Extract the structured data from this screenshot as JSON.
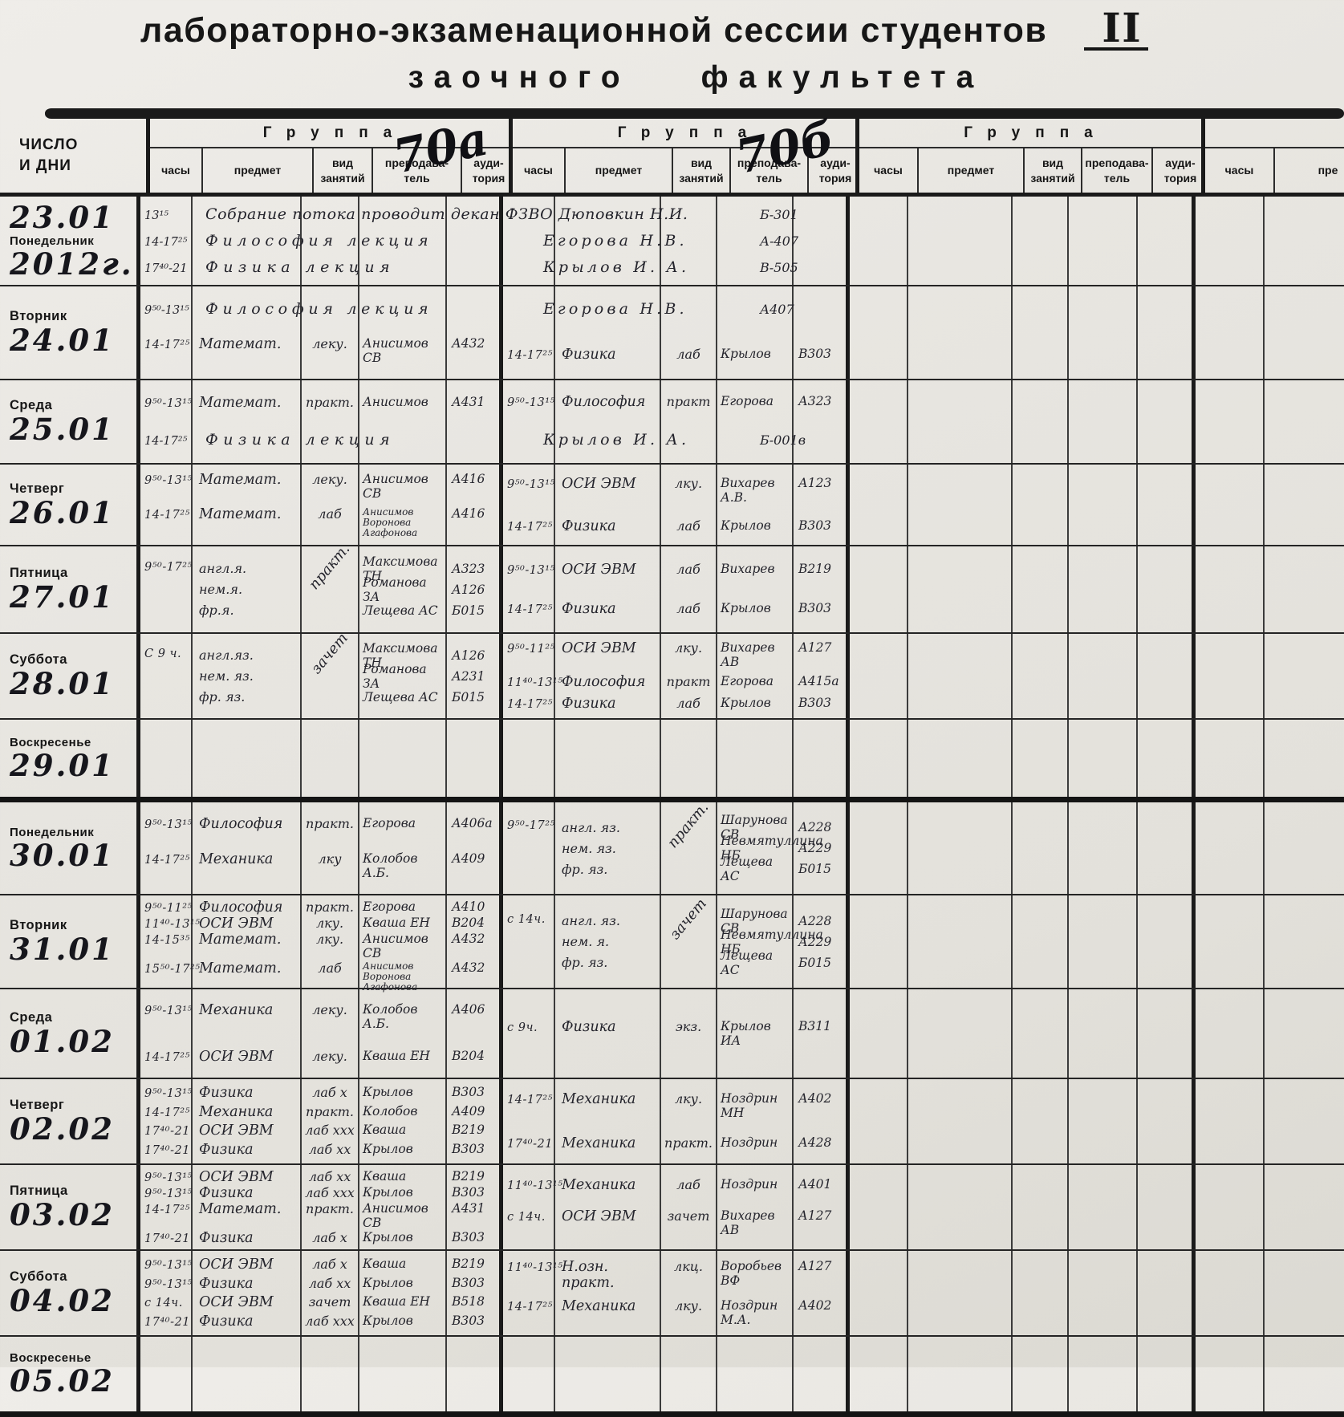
{
  "title": {
    "line1": "лабораторно-экзаменационной сессии студентов",
    "numeral": "II",
    "line2": "заочного факультета"
  },
  "header": {
    "date_col": "ЧИСЛО\nИ ДНИ",
    "group_label": "Группа",
    "group_numbers": [
      "70а",
      "70б",
      "",
      ""
    ],
    "columns": [
      "часы",
      "предмет",
      "вид\nзанятий",
      "преподава-\nтель",
      "ауди-\nтория"
    ],
    "partial_columns": [
      "часы",
      "пре"
    ]
  },
  "rows": [
    {
      "date_lines": [
        {
          "t": "23.01",
          "s": "big"
        },
        {
          "t": "Понедельник",
          "s": "print"
        },
        {
          "t": "2012г.",
          "s": "big"
        }
      ],
      "a": [
        {
          "span": true,
          "time": "13¹⁵",
          "text": "Собрание потока проводит декан ФЗВО Дюповкин Н.И.",
          "room": "Б-301",
          "ls": "0.03em"
        },
        {
          "span": true,
          "time": "14-17²⁵",
          "text": "Философия лекция",
          "teacher": "Егорова Н.В.",
          "room": "А-407",
          "ls": "0.3em"
        },
        {
          "span": true,
          "time": "17⁴⁰-21",
          "text": "Физика лекция",
          "teacher": "Крылов И. А.",
          "room": "В-505",
          "ls": "0.34em"
        }
      ],
      "b": []
    },
    {
      "date_lines": [
        {
          "t": "Вторник",
          "s": "print"
        },
        {
          "t": "24.01",
          "s": "big"
        }
      ],
      "a": [
        {
          "span": true,
          "time": "9⁵⁰-13¹⁵",
          "text": "Философия лекция",
          "teacher": "Егорова Н.В.",
          "room": "А407",
          "ls": "0.3em"
        },
        {
          "time": "14-17²⁵",
          "subject": "Математ.",
          "type": "леку.",
          "teacher": "Анисимов СВ",
          "room": "А432"
        }
      ],
      "b": [
        {
          "spacer": true
        },
        {
          "time": "14-17²⁵",
          "subject": "Физика",
          "type": "лаб",
          "teacher": "Крылов",
          "room": "В303"
        }
      ]
    },
    {
      "date_lines": [
        {
          "t": "Среда",
          "s": "print"
        },
        {
          "t": "25.01",
          "s": "big"
        }
      ],
      "a": [
        {
          "time": "9⁵⁰-13¹⁵",
          "subject": "Математ.",
          "type": "практ.",
          "teacher": "Анисимов",
          "room": "А431"
        },
        {
          "span": true,
          "time": "14-17²⁵",
          "text": "Физика лекция",
          "teacher": "Крылов И. А.",
          "room": "Б-001в",
          "ls": "0.34em"
        }
      ],
      "b": [
        {
          "time": "9⁵⁰-13¹⁵",
          "subject": "Философия",
          "type": "практ",
          "teacher": "Егорова",
          "room": "А323"
        },
        {
          "spacer": true
        }
      ]
    },
    {
      "date_lines": [
        {
          "t": "Четверг",
          "s": "print"
        },
        {
          "t": "26.01",
          "s": "big"
        }
      ],
      "a": [
        {
          "time": "9⁵⁰-13¹⁵",
          "subject": "Математ.",
          "type": "леку.",
          "teacher": "Анисимов СВ",
          "room": "А416"
        },
        {
          "time": "14-17²⁵",
          "subject": "Математ.",
          "type": "лаб",
          "teachers": [
            "Анисимов",
            "Воронова",
            "Агафонова"
          ],
          "room": "А416"
        }
      ],
      "b": [
        {
          "time": "9⁵⁰-13¹⁵",
          "subject": "ОСИ ЭВМ",
          "type": "лку.",
          "teacher": "Вихарев А.В.",
          "room": "А123"
        },
        {
          "time": "14-17²⁵",
          "subject": "Физика",
          "type": "лаб",
          "teacher": "Крылов",
          "room": "В303"
        }
      ]
    },
    {
      "date_lines": [
        {
          "t": "Пятница",
          "s": "print"
        },
        {
          "t": "27.01",
          "s": "big"
        }
      ],
      "a": [
        {
          "time": "9⁵⁰-17²⁵",
          "subjects": [
            "англ.я.",
            "нем.я.",
            "фр.я."
          ],
          "type": "практ.",
          "diag": true,
          "teachers": [
            "Максимова ТН",
            "Романова ЗА",
            "Лещева АС"
          ],
          "rooms": [
            "А323",
            "А126",
            "Б015"
          ]
        }
      ],
      "b": [
        {
          "time": "9⁵⁰-13¹⁵",
          "subject": "ОСИ ЭВМ",
          "type": "лаб",
          "teacher": "Вихарев",
          "room": "В219"
        },
        {
          "time": "14-17²⁵",
          "subject": "Физика",
          "type": "лаб",
          "teacher": "Крылов",
          "room": "В303"
        }
      ]
    },
    {
      "date_lines": [
        {
          "t": "Суббота",
          "s": "print"
        },
        {
          "t": "28.01",
          "s": "big"
        }
      ],
      "a": [
        {
          "time": "С 9 ч.",
          "subjects": [
            "англ.яз.",
            "нем. яз.",
            "фр. яз."
          ],
          "type": "зачет",
          "diag": true,
          "teachers": [
            "Максимова ТН",
            "Романова ЗА",
            "Лещева АС"
          ],
          "rooms": [
            "А126",
            "А231",
            "Б015"
          ]
        }
      ],
      "b": [
        {
          "time": "9⁵⁰-11²⁵",
          "subject": "ОСИ ЭВМ",
          "type": "лку.",
          "teacher": "Вихарев АВ",
          "room": "А127"
        },
        {
          "time": "11⁴⁰-13¹⁵",
          "subject": "Философия",
          "type": "практ",
          "teacher": "Егорова",
          "room": "А415а"
        },
        {
          "time": "14-17²⁵",
          "subject": "Физика",
          "type": "лаб",
          "teacher": "Крылов",
          "room": "В303"
        }
      ]
    },
    {
      "date_lines": [
        {
          "t": "Воскресенье",
          "s": "print"
        },
        {
          "t": "29.01",
          "s": "big"
        }
      ],
      "a": [],
      "b": [],
      "thick_bottom": true
    },
    {
      "date_lines": [
        {
          "t": "Понедельник",
          "s": "print"
        },
        {
          "t": "30.01",
          "s": "big"
        }
      ],
      "a": [
        {
          "time": "9⁵⁰-13¹⁵",
          "subject": "Философия",
          "type": "практ.",
          "teacher": "Егорова",
          "room": "А406а"
        },
        {
          "time": "14-17²⁵",
          "subject": "Механика",
          "type": "лку",
          "teacher": "Колобов А.Б.",
          "room": "А409"
        }
      ],
      "b": [
        {
          "time": "9⁵⁰-17²⁵",
          "subjects": [
            "англ. яз.",
            "нем. яз.",
            "фр. яз."
          ],
          "type": "практ.",
          "diag": true,
          "teachers": [
            "Шарунова СВ",
            "Невмятуллина НБ",
            "Лещева АС"
          ],
          "rooms": [
            "А228",
            "А229",
            "Б015"
          ]
        }
      ]
    },
    {
      "date_lines": [
        {
          "t": "Вторник",
          "s": "print"
        },
        {
          "t": "31.01",
          "s": "big"
        }
      ],
      "a": [
        {
          "time": "9⁵⁰-11²⁵",
          "subject": "Философия",
          "type": "практ.",
          "teacher": "Егорова",
          "room": "А410"
        },
        {
          "time": "11⁴⁰-13¹⁵",
          "subject": "ОСИ ЭВМ",
          "type": "лку.",
          "teacher": "Кваша ЕН",
          "room": "В204"
        },
        {
          "time": "14-15³⁵",
          "subject": "Математ.",
          "type": "лку.",
          "teacher": "Анисимов СВ",
          "room": "А432"
        },
        {
          "time": "15⁵⁰-17²⁵",
          "subject": "Математ.",
          "type": "лаб",
          "teachers": [
            "Анисимов",
            "Воронова",
            "Агафонова"
          ],
          "room": "А432"
        }
      ],
      "b": [
        {
          "time": "с 14ч.",
          "subjects": [
            "англ. яз.",
            "нем. я.",
            "фр. яз."
          ],
          "type": "зачет",
          "diag": true,
          "teachers": [
            "Шарунова СВ",
            "Невмятуллина НБ",
            "Лещева АС"
          ],
          "rooms": [
            "А228",
            "А229",
            "Б015"
          ]
        }
      ]
    },
    {
      "date_lines": [
        {
          "t": "Среда",
          "s": "print"
        },
        {
          "t": "01.02",
          "s": "big"
        }
      ],
      "a": [
        {
          "time": "9⁵⁰-13¹⁵",
          "subject": "Механика",
          "type": "леку.",
          "teacher": "Колобов А.Б.",
          "room": "А406"
        },
        {
          "time": "14-17²⁵",
          "subject": "ОСИ ЭВМ",
          "type": "леку.",
          "teacher": "Кваша ЕН",
          "room": "В204"
        }
      ],
      "b": [
        {
          "time": "с 9ч.",
          "subject": "Физика",
          "type": "экз.",
          "teacher": "Крылов ИА",
          "room": "В311"
        }
      ]
    },
    {
      "date_lines": [
        {
          "t": "Четверг",
          "s": "print"
        },
        {
          "t": "02.02",
          "s": "big"
        }
      ],
      "a": [
        {
          "time": "9⁵⁰-13¹⁵",
          "subject": "Физика",
          "type": "лаб х",
          "teacher": "Крылов",
          "room": "В303"
        },
        {
          "time": "14-17²⁵",
          "subject": "Механика",
          "type": "практ.",
          "teacher": "Колобов",
          "room": "А409"
        },
        {
          "time": "17⁴⁰-21",
          "subject": "ОСИ ЭВМ",
          "type": "лаб ххх",
          "teacher": "Кваша",
          "room": "В219"
        },
        {
          "time": "17⁴⁰-21",
          "subject": "Физика",
          "type": "лаб хх",
          "teacher": "Крылов",
          "room": "В303"
        }
      ],
      "b": [
        {
          "time": "14-17²⁵",
          "subject": "Механика",
          "type": "лку.",
          "teacher": "Ноздрин МН",
          "room": "А402"
        },
        {
          "time": "17⁴⁰-21",
          "subject": "Механика",
          "type": "практ.",
          "teacher": "Ноздрин",
          "room": "А428"
        }
      ]
    },
    {
      "date_lines": [
        {
          "t": "Пятница",
          "s": "print"
        },
        {
          "t": "03.02",
          "s": "big"
        }
      ],
      "a": [
        {
          "time": "9⁵⁰-13¹⁵",
          "subject": "ОСИ ЭВМ",
          "type": "лаб хх",
          "teacher": "Кваша",
          "room": "В219"
        },
        {
          "time": "9⁵⁰-13¹⁵",
          "subject": "Физика",
          "type": "лаб ххх",
          "teacher": "Крылов",
          "room": "В303"
        },
        {
          "time": "14-17²⁵",
          "subject": "Математ.",
          "type": "практ.",
          "teacher": "Анисимов СВ",
          "room": "А431"
        },
        {
          "time": "17⁴⁰-21",
          "subject": "Физика",
          "type": "лаб х",
          "teacher": "Крылов",
          "room": "В303"
        }
      ],
      "b": [
        {
          "time": "11⁴⁰-13¹⁵",
          "subject": "Механика",
          "type": "лаб",
          "teacher": "Ноздрин",
          "room": "А401"
        },
        {
          "time": "с 14ч.",
          "subject": "ОСИ ЭВМ",
          "type": "зачет",
          "teacher": "Вихарев АВ",
          "room": "А127"
        }
      ]
    },
    {
      "date_lines": [
        {
          "t": "Суббота",
          "s": "print"
        },
        {
          "t": "04.02",
          "s": "big"
        }
      ],
      "a": [
        {
          "time": "9⁵⁰-13¹⁵",
          "subject": "ОСИ ЭВМ",
          "type": "лаб х",
          "teacher": "Кваша",
          "room": "В219"
        },
        {
          "time": "9⁵⁰-13¹⁵",
          "subject": "Физика",
          "type": "лаб хх",
          "teacher": "Крылов",
          "room": "В303"
        },
        {
          "time": "с 14ч.",
          "subject": "ОСИ ЭВМ",
          "type": "зачет",
          "teacher": "Кваша ЕН",
          "room": "В518"
        },
        {
          "time": "17⁴⁰-21",
          "subject": "Физика",
          "type": "лаб ххх",
          "teacher": "Крылов",
          "room": "В303"
        }
      ],
      "b": [
        {
          "time": "11⁴⁰-13¹⁵",
          "subject": "Н.озн. практ.",
          "type": "лкц.",
          "teacher": "Воробьев ВФ",
          "room": "А127"
        },
        {
          "time": "14-17²⁵",
          "subject": "Механика",
          "type": "лку.",
          "teacher": "Ноздрин М.А.",
          "room": "А402"
        }
      ]
    },
    {
      "date_lines": [
        {
          "t": "Воскресенье",
          "s": "print"
        },
        {
          "t": "05.02",
          "s": "big"
        }
      ],
      "a": [],
      "b": [],
      "thick_bottom": true
    }
  ]
}
